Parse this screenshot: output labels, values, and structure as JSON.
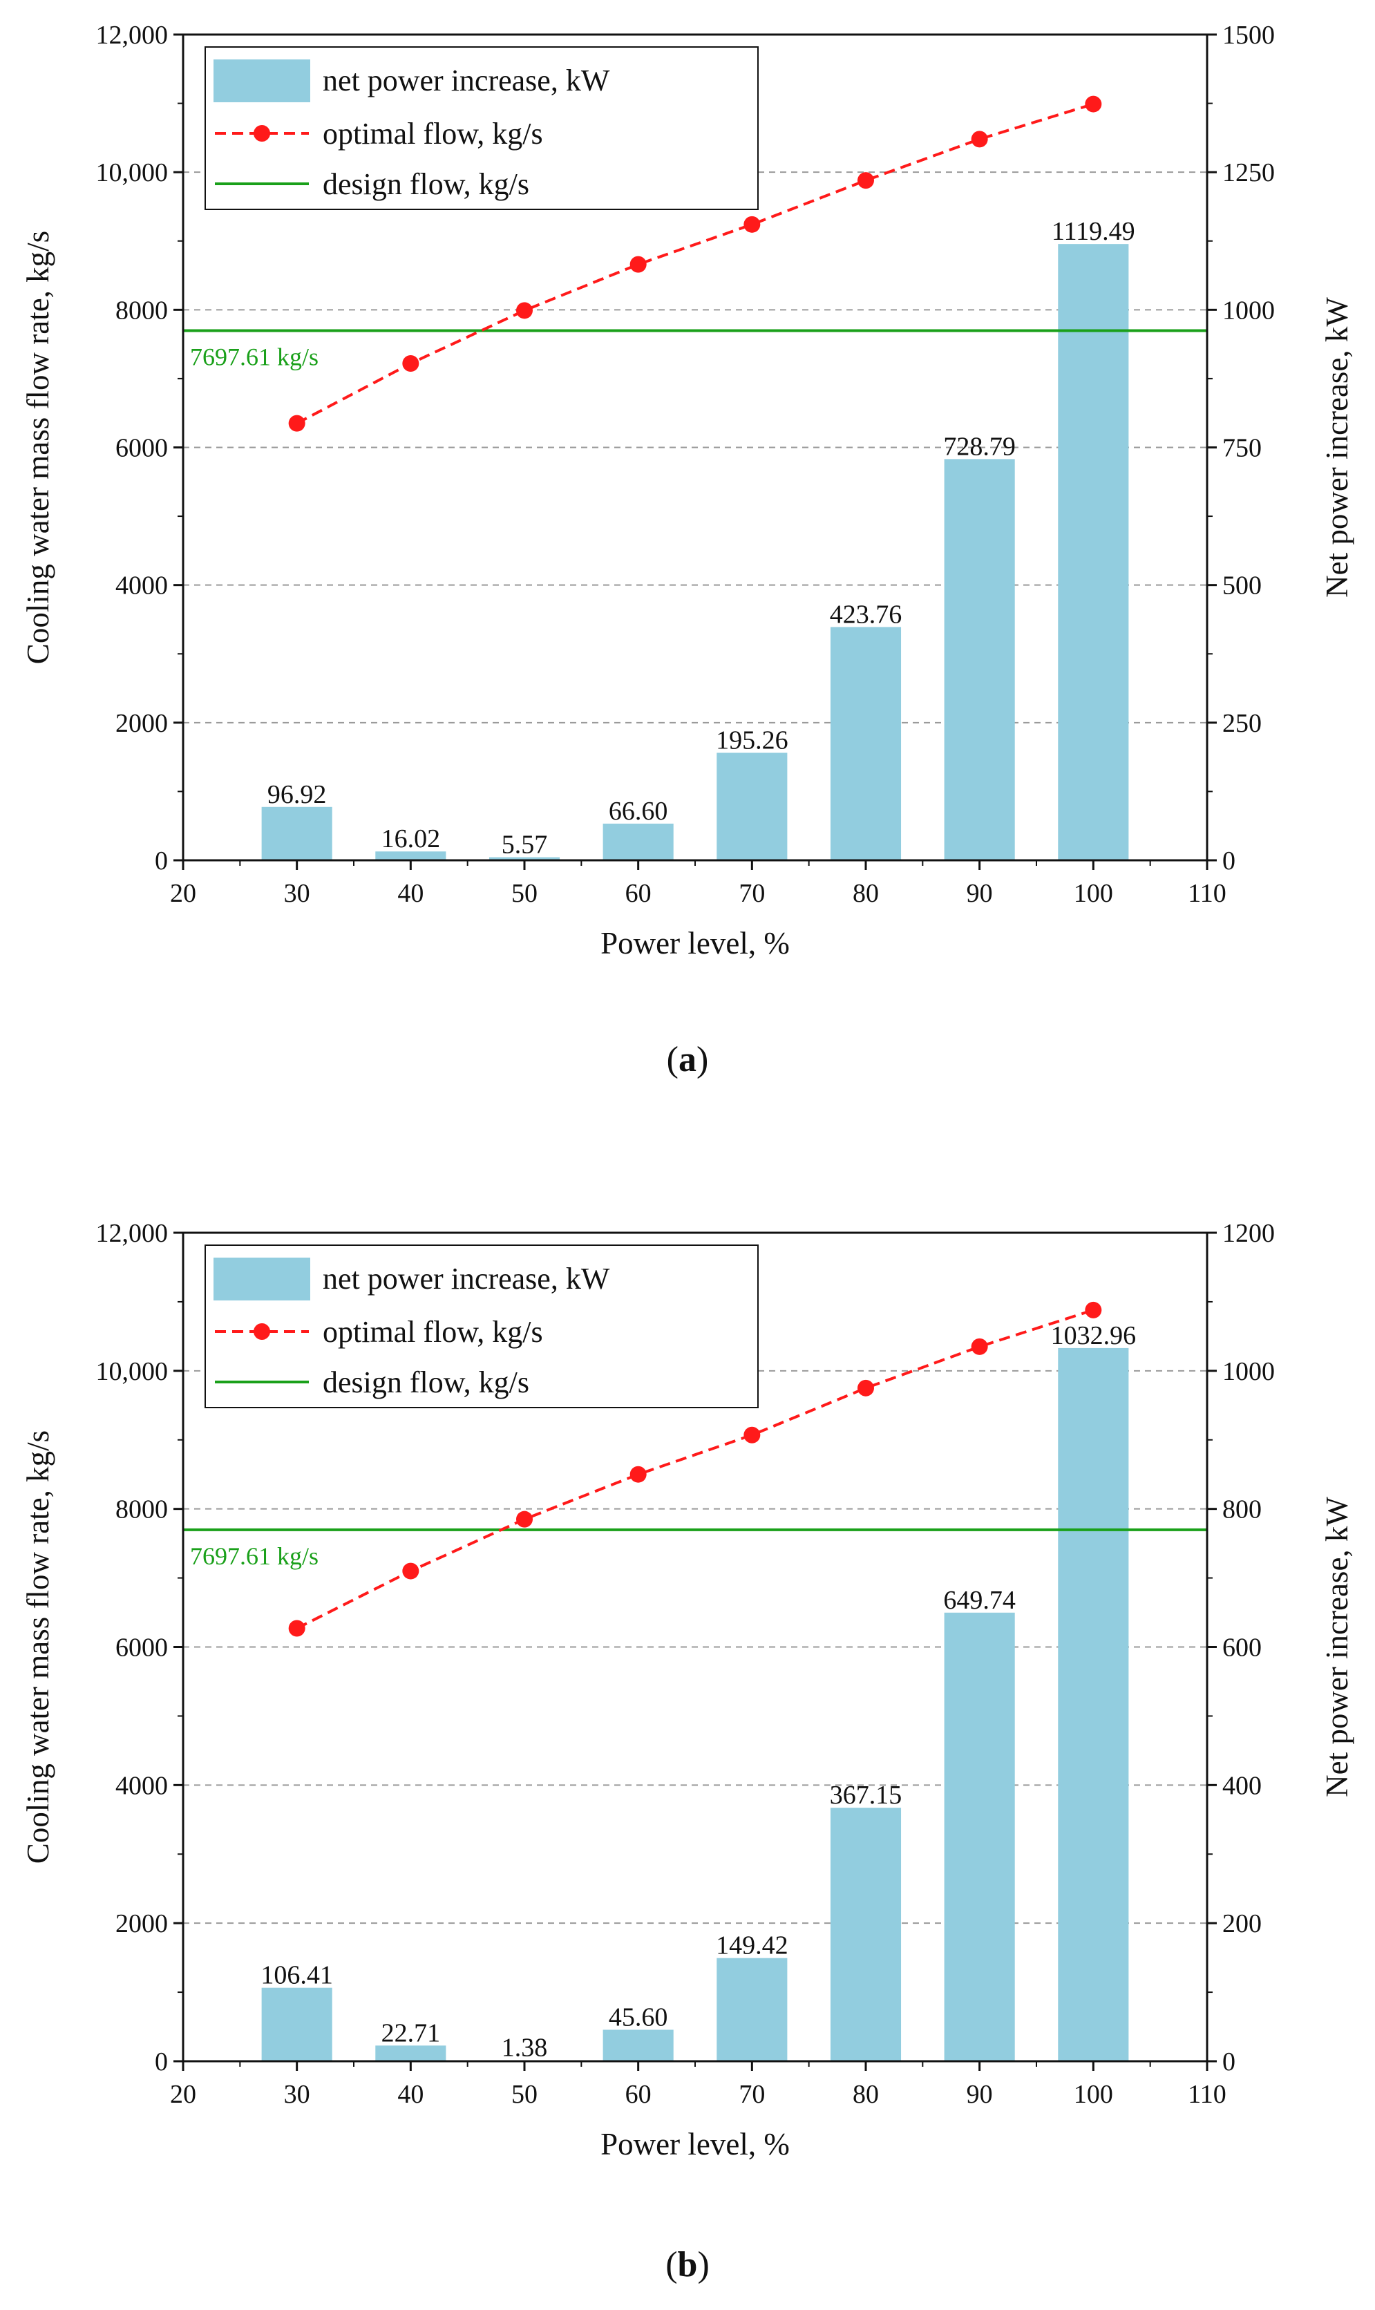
{
  "figure": {
    "panels_count": 2,
    "colors": {
      "bar": "#92cddf",
      "optimal": "#ff1a1a",
      "design": "#1aa01a",
      "grid": "#9a9a9a",
      "axis": "#111111"
    }
  },
  "chart_data": [
    {
      "type": "bar",
      "panel_label": "(a)",
      "xlabel": "Power level, %",
      "ylabel_left": "Cooling water mass flow rate, kg/s",
      "ylabel_right": "Net power increase, kW",
      "xlim": [
        20,
        110
      ],
      "xticks": [
        20,
        30,
        40,
        50,
        60,
        70,
        80,
        90,
        100,
        110
      ],
      "ylim_left": [
        0,
        12000
      ],
      "yticks_left": [
        0,
        2000,
        4000,
        6000,
        8000,
        10000,
        12000
      ],
      "ytick_labels_left": [
        "0",
        "2000",
        "4000",
        "6000",
        "8000",
        "10,000",
        "12,000"
      ],
      "ylim_right": [
        0,
        1500
      ],
      "yticks_right": [
        0,
        250,
        500,
        750,
        1000,
        1250,
        1500
      ],
      "ytick_labels_right": [
        "0",
        "250",
        "500",
        "750",
        "1000",
        "1250",
        "1500"
      ],
      "grid": "horizontal dashed",
      "legend_position": "top-left",
      "x": [
        30,
        40,
        50,
        60,
        70,
        80,
        90,
        100
      ],
      "series": [
        {
          "name": "net  power increase, kW",
          "kind": "bar",
          "axis": "right",
          "values": [
            96.92,
            16.02,
            5.57,
            66.6,
            195.26,
            423.76,
            728.79,
            1119.49
          ],
          "labels": [
            "96.92",
            "16.02",
            "5.57",
            "66.60",
            "195.26",
            "423.76",
            "728.79",
            "1119.49"
          ]
        },
        {
          "name": "optimal flow, kg/s",
          "kind": "line-dashed-markers",
          "axis": "left",
          "values": [
            6350,
            7220,
            7990,
            8660,
            9240,
            9880,
            10480,
            10990
          ]
        },
        {
          "name": "design flow, kg/s",
          "kind": "hline",
          "axis": "left",
          "value": 7697.61,
          "label": "7697.61 kg/s"
        }
      ]
    },
    {
      "type": "bar",
      "panel_label": "(b)",
      "xlabel": "Power level, %",
      "ylabel_left": "Cooling water mass flow rate, kg/s",
      "ylabel_right": "Net power increase, kW",
      "xlim": [
        20,
        110
      ],
      "xticks": [
        20,
        30,
        40,
        50,
        60,
        70,
        80,
        90,
        100,
        110
      ],
      "ylim_left": [
        0,
        12000
      ],
      "yticks_left": [
        0,
        2000,
        4000,
        6000,
        8000,
        10000,
        12000
      ],
      "ytick_labels_left": [
        "0",
        "2000",
        "4000",
        "6000",
        "8000",
        "10,000",
        "12,000"
      ],
      "ylim_right": [
        0,
        1200
      ],
      "yticks_right": [
        0,
        200,
        400,
        600,
        800,
        1000,
        1200
      ],
      "ytick_labels_right": [
        "0",
        "200",
        "400",
        "600",
        "800",
        "1000",
        "1200"
      ],
      "grid": "horizontal dashed",
      "legend_position": "top-left",
      "x": [
        30,
        40,
        50,
        60,
        70,
        80,
        90,
        100
      ],
      "series": [
        {
          "name": "net power increase, kW",
          "kind": "bar",
          "axis": "right",
          "values": [
            106.41,
            22.71,
            1.38,
            45.6,
            149.42,
            367.15,
            649.74,
            1032.96
          ],
          "labels": [
            "106.41",
            "22.71",
            "1.38",
            "45.60",
            "149.42",
            "367.15",
            "649.74",
            "1032.96"
          ]
        },
        {
          "name": "optimal flow, kg/s",
          "kind": "line-dashed-markers",
          "axis": "left",
          "values": [
            6270,
            7100,
            7850,
            8500,
            9070,
            9750,
            10350,
            10880
          ]
        },
        {
          "name": "design flow, kg/s",
          "kind": "hline",
          "axis": "left",
          "value": 7697.61,
          "label": "7697.61 kg/s"
        }
      ]
    }
  ]
}
